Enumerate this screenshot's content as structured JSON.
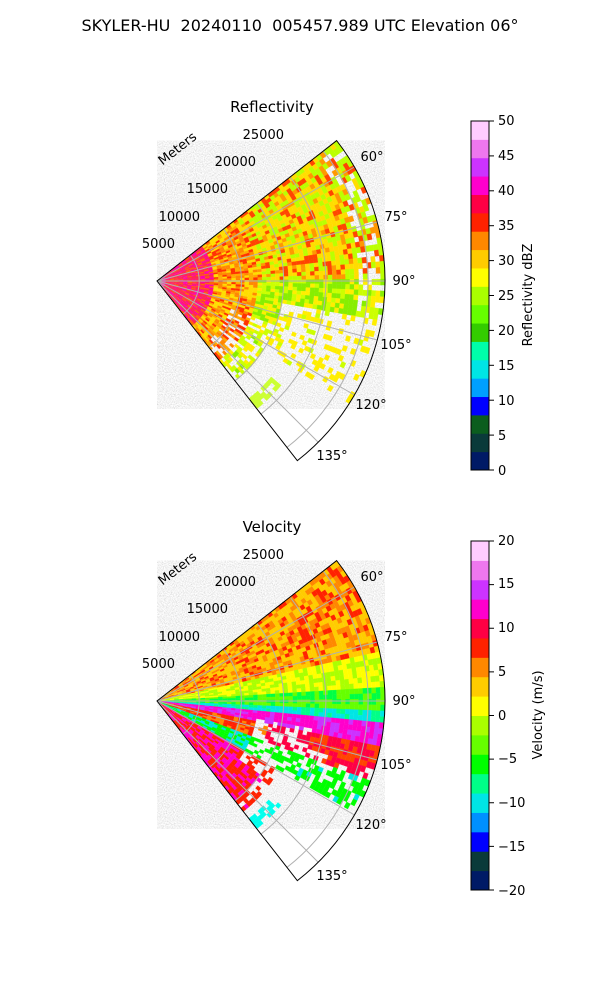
{
  "figure": {
    "title": "SKYLER-HU  20240110  005457.989 UTC Elevation 06°"
  },
  "chart_data": [
    {
      "type": "heatmap",
      "projection": "polar sector (PPI)",
      "title": "Reflectivity",
      "radial_axis_label": "Meters",
      "radial_ticks": [
        "5000",
        "10000",
        "15000",
        "20000",
        "25000"
      ],
      "azimuth_ticks": [
        "60°",
        "75°",
        "90°",
        "105°",
        "120°",
        "135°"
      ],
      "azimuth_range_deg": [
        52,
        142
      ],
      "range_max_m": 27000,
      "grid": true,
      "colorbar": {
        "label": "Reflectivity dBZ",
        "range": [
          0,
          50
        ],
        "ticks": [
          "0",
          "5",
          "10",
          "15",
          "20",
          "25",
          "30",
          "35",
          "40",
          "45",
          "50"
        ],
        "colors": [
          "#001a66",
          "#0a3a3a",
          "#0b5d1e",
          "#0000ff",
          "#00a0ff",
          "#00e5e5",
          "#00ffaa",
          "#33cc00",
          "#66ff00",
          "#aaff00",
          "#ffff00",
          "#ffcc00",
          "#ff8800",
          "#ff2200",
          "#ff0044",
          "#ff00cc",
          "#cc33ff",
          "#ee77ee",
          "#ffccff"
        ]
      }
    },
    {
      "type": "heatmap",
      "projection": "polar sector (PPI)",
      "title": "Velocity",
      "radial_axis_label": "Meters",
      "radial_ticks": [
        "5000",
        "10000",
        "15000",
        "20000",
        "25000"
      ],
      "azimuth_ticks": [
        "60°",
        "75°",
        "90°",
        "105°",
        "120°",
        "135°"
      ],
      "azimuth_range_deg": [
        52,
        142
      ],
      "range_max_m": 27000,
      "grid": true,
      "colorbar": {
        "label": "Velocity (m/s)",
        "range": [
          -20,
          20
        ],
        "ticks": [
          "−20",
          "−15",
          "−10",
          "−5",
          "0",
          "5",
          "10",
          "15",
          "20"
        ],
        "colors": [
          "#001a66",
          "#0a3a3a",
          "#0000ff",
          "#0090ff",
          "#00e5e5",
          "#00ff88",
          "#00ff00",
          "#66ff00",
          "#aaff00",
          "#ffff00",
          "#ffcc00",
          "#ff8800",
          "#ff2200",
          "#ff0044",
          "#ff00cc",
          "#cc33ff",
          "#ee77ee",
          "#ffccff"
        ]
      }
    }
  ]
}
